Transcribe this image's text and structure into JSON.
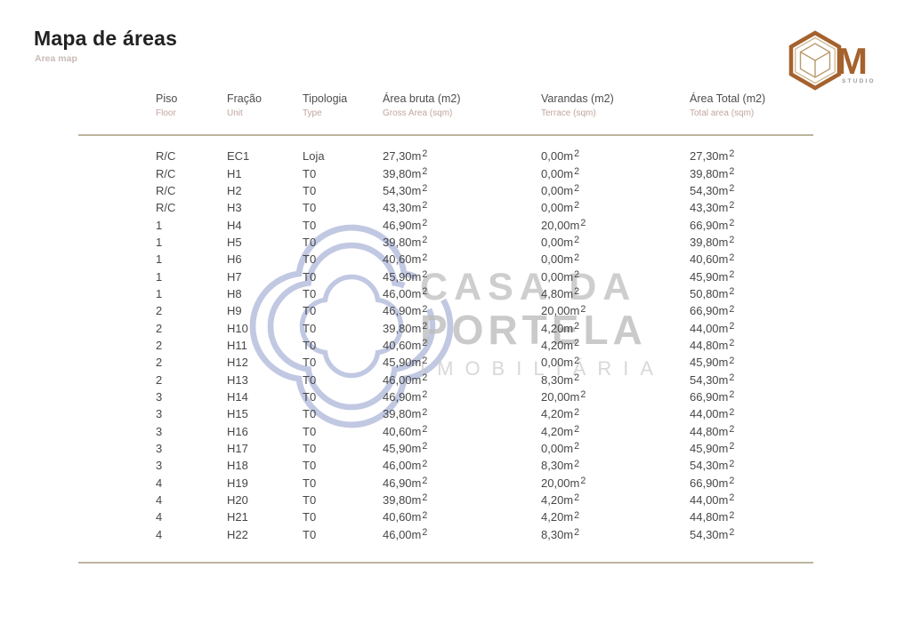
{
  "page": {
    "title": "Mapa de áreas",
    "subtitle": "Area map"
  },
  "brand": {
    "monogram": "M",
    "studio_label": "STUDIO",
    "colors": {
      "copper": "#A5622D",
      "cube_line": "#B99A6E",
      "studio_gray": "#9B9B9B"
    }
  },
  "watermark": {
    "line1": "CASA DA",
    "line2": "PORTELA",
    "line3": "IMOBILIÁRIA",
    "logo_icon": "quatrefoil-outline",
    "colors": {
      "text": "#C2C2C2",
      "logo": "#B7BFDE"
    }
  },
  "table": {
    "column_keys": [
      "piso",
      "fracao",
      "tipologia",
      "area_bruta",
      "varandas",
      "area_total"
    ],
    "columns": [
      {
        "label": "Piso",
        "sublabel": "Floor"
      },
      {
        "label": "Fração",
        "sublabel": "Unit"
      },
      {
        "label": "Tipologia",
        "sublabel": "Type"
      },
      {
        "label": "Área bruta (m2)",
        "sublabel": "Gross Area (sqm)"
      },
      {
        "label": "Varandas (m2)",
        "sublabel": "Terrace (sqm)"
      },
      {
        "label": "Área Total (m2)",
        "sublabel": "Total area (sqm)"
      }
    ],
    "rows": [
      [
        "R/C",
        "EC1",
        "Loja",
        "27,30m2",
        "0,00m2",
        "27,30m2"
      ],
      [
        "R/C",
        "H1",
        "T0",
        "39,80m2",
        "0,00m2",
        "39,80m2"
      ],
      [
        "R/C",
        "H2",
        "T0",
        "54,30m2",
        "0,00m2",
        "54,30m2"
      ],
      [
        "R/C",
        "H3",
        "T0",
        "43,30m2",
        "0,00m2",
        "43,30m2"
      ],
      [
        "1",
        "H4",
        "T0",
        "46,90m2",
        "20,00m2",
        "66,90m2"
      ],
      [
        "1",
        "H5",
        "T0",
        "39,80m2",
        "0,00m2",
        "39,80m2"
      ],
      [
        "1",
        "H6",
        "T0",
        "40,60m2",
        "0,00m2",
        "40,60m2"
      ],
      [
        "1",
        "H7",
        "T0",
        "45,90m2",
        "0,00m2",
        "45,90m2"
      ],
      [
        "1",
        "H8",
        "T0",
        "46,00m2",
        "4,80m2",
        "50,80m2"
      ],
      [
        "2",
        "H9",
        "T0",
        "46,90m2",
        "20,00m2",
        "66,90m2"
      ],
      [
        "2",
        "H10",
        "T0",
        "39,80m2",
        "4,20m2",
        "44,00m2"
      ],
      [
        "2",
        "H11",
        "T0",
        "40,60m2",
        "4,20m2",
        "44,80m2"
      ],
      [
        "2",
        "H12",
        "T0",
        "45,90m2",
        "0,00m2",
        "45,90m2"
      ],
      [
        "2",
        "H13",
        "T0",
        "46,00m2",
        "8,30m2",
        "54,30m2"
      ],
      [
        "3",
        "H14",
        "T0",
        "46,90m2",
        "20,00m2",
        "66,90m2"
      ],
      [
        "3",
        "H15",
        "T0",
        "39,80m2",
        "4,20m2",
        "44,00m2"
      ],
      [
        "3",
        "H16",
        "T0",
        "40,60m2",
        "4,20m2",
        "44,80m2"
      ],
      [
        "3",
        "H17",
        "T0",
        "45,90m2",
        "0,00m2",
        "45,90m2"
      ],
      [
        "3",
        "H18",
        "T0",
        "46,00m2",
        "8,30m2",
        "54,30m2"
      ],
      [
        "4",
        "H19",
        "T0",
        "46,90m2",
        "20,00m2",
        "66,90m2"
      ],
      [
        "4",
        "H20",
        "T0",
        "39,80m2",
        "4,20m2",
        "44,00m2"
      ],
      [
        "4",
        "H21",
        "T0",
        "40,60m2",
        "4,20m2",
        "44,80m2"
      ],
      [
        "4",
        "H22",
        "T0",
        "46,00m2",
        "8,30m2",
        "54,30m2"
      ]
    ]
  },
  "rules": {
    "color": "#BCB49D"
  }
}
